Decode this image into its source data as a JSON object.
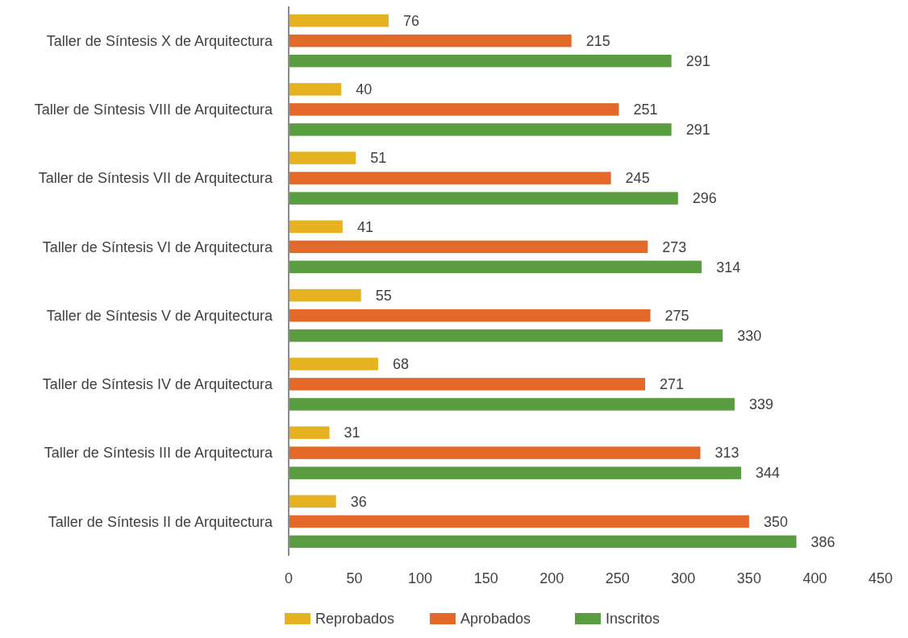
{
  "chart_data": {
    "type": "bar",
    "orientation": "horizontal",
    "categories": [
      "Taller de Síntesis X de Arquitectura",
      "Taller de Síntesis VIII de Arquitectura",
      "Taller de Síntesis VII de Arquitectura",
      "Taller de Síntesis VI de Arquitectura",
      "Taller de Síntesis V de Arquitectura",
      "Taller de Síntesis IV de Arquitectura",
      "Taller de Síntesis III de Arquitectura",
      "Taller de Síntesis II de Arquitectura"
    ],
    "series": [
      {
        "name": "Reprobados",
        "color": "#e6b222",
        "values": [
          76,
          40,
          51,
          41,
          55,
          68,
          31,
          36
        ]
      },
      {
        "name": "Aprobados",
        "color": "#e2692a",
        "values": [
          215,
          251,
          245,
          273,
          275,
          271,
          313,
          350
        ]
      },
      {
        "name": "Inscritos",
        "color": "#5a9c40",
        "values": [
          291,
          291,
          296,
          314,
          330,
          339,
          344,
          386
        ]
      }
    ],
    "xlim": [
      0,
      450
    ],
    "xticks": [
      0,
      50,
      100,
      150,
      200,
      250,
      300,
      350,
      400,
      450
    ],
    "data_labels": true,
    "legend": "bottom",
    "grid": false
  }
}
